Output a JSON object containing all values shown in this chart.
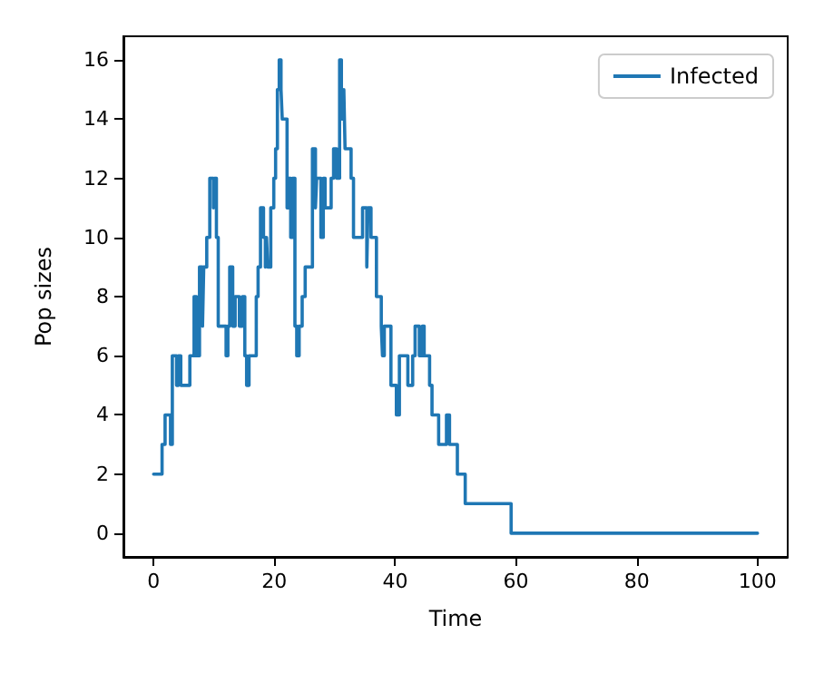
{
  "chart_data": {
    "type": "step",
    "xlabel": "Time",
    "ylabel": "Pop sizes",
    "xlim": [
      -5,
      105
    ],
    "ylim": [
      -0.8,
      16.8
    ],
    "xticks": [
      0,
      20,
      40,
      60,
      80,
      100
    ],
    "yticks": [
      0,
      2,
      4,
      6,
      8,
      10,
      12,
      14,
      16
    ],
    "grid": false,
    "legend": "top right",
    "marker": "none",
    "line_style": "solid",
    "series": [
      {
        "name": "Infected",
        "color": "#1f77b4",
        "x": [
          0,
          1.4,
          1.9,
          2.8,
          3.1,
          3.8,
          4.1,
          4.5,
          6.0,
          6.7,
          7.1,
          7.6,
          8.1,
          8.3,
          8.8,
          9.3,
          9.9,
          10.1,
          10.4,
          10.7,
          12.0,
          12.3,
          12.6,
          13.1,
          13.5,
          14.2,
          14.7,
          15.1,
          15.4,
          15.8,
          17.0,
          17.3,
          17.7,
          18.2,
          18.5,
          18.7,
          18.9,
          19.4,
          19.9,
          20.2,
          20.5,
          20.8,
          21.1,
          21.3,
          22.1,
          22.4,
          22.7,
          23.0,
          23.4,
          23.7,
          24.1,
          24.6,
          25.1,
          26.3,
          26.8,
          27.0,
          27.7,
          28.1,
          28.4,
          29.4,
          29.8,
          30.3,
          30.8,
          31.1,
          31.5,
          31.7,
          32.7,
          33.1,
          34.6,
          35.3,
          35.5,
          36.0,
          36.9,
          37.7,
          37.9,
          38.2,
          39.3,
          40.2,
          40.7,
          42.1,
          42.9,
          43.3,
          44.0,
          44.5,
          44.8,
          45.7,
          46.1,
          47.2,
          48.5,
          49.0,
          50.3,
          51.6,
          59.2,
          100
        ],
        "values": [
          2,
          3,
          4,
          3,
          6,
          5,
          6,
          5,
          6,
          8,
          6,
          9,
          7,
          9,
          10,
          12,
          11,
          12,
          10,
          7,
          6,
          7,
          9,
          7,
          8,
          7,
          8,
          6,
          5,
          6,
          8,
          9,
          11,
          10,
          9,
          10,
          9,
          11,
          12,
          13,
          15,
          16,
          15,
          14,
          11,
          12,
          10,
          12,
          7,
          6,
          7,
          8,
          9,
          13,
          11,
          12,
          10,
          12,
          11,
          12,
          13,
          12,
          16,
          14,
          15,
          13,
          12,
          10,
          11,
          9,
          11,
          10,
          8,
          7,
          6,
          7,
          5,
          4,
          6,
          5,
          6,
          7,
          6,
          7,
          6,
          5,
          4,
          3,
          4,
          3,
          2,
          1,
          0,
          0
        ]
      }
    ]
  }
}
